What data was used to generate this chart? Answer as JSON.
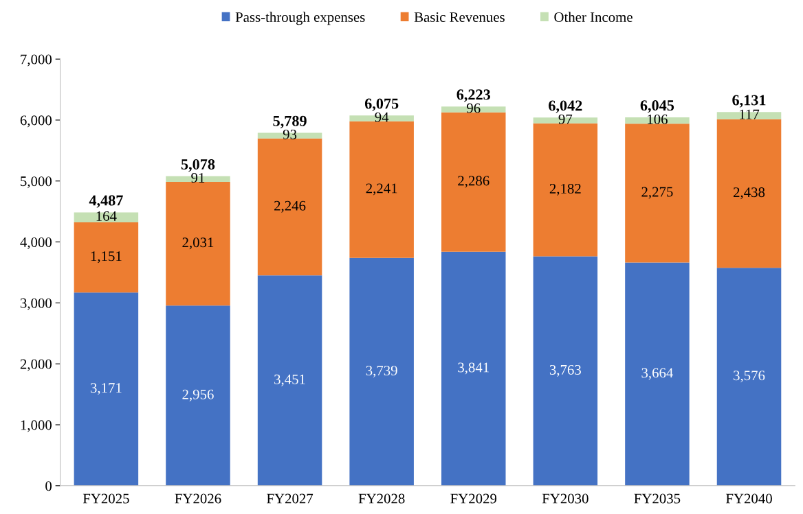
{
  "chart_data": {
    "type": "bar",
    "stacked": true,
    "categories": [
      "FY2025",
      "FY2026",
      "FY2027",
      "FY2028",
      "FY2029",
      "FY2030",
      "FY2035",
      "FY2040"
    ],
    "series": [
      {
        "name": "Pass-through expenses",
        "color": "#4472c4",
        "values": [
          3171,
          2956,
          3451,
          3739,
          3841,
          3763,
          3664,
          3576
        ],
        "value_labels": [
          "3,171",
          "2,956",
          "3,451",
          "3,739",
          "3,841",
          "3,763",
          "3,664",
          "3,576"
        ]
      },
      {
        "name": "Basic Revenues",
        "color": "#ed7d31",
        "values": [
          1151,
          2031,
          2246,
          2241,
          2286,
          2182,
          2275,
          2438
        ],
        "value_labels": [
          "1,151",
          "2,031",
          "2,246",
          "2,241",
          "2,286",
          "2,182",
          "2,275",
          "2,438"
        ]
      },
      {
        "name": "Other Income",
        "color": "#c5e0b4",
        "values": [
          164,
          91,
          93,
          94,
          96,
          97,
          106,
          117
        ],
        "value_labels": [
          "164",
          "91",
          "93",
          "94",
          "96",
          "97",
          "106",
          "117"
        ]
      }
    ],
    "totals": [
      "4,487",
      "5,078",
      "5,789",
      "6,075",
      "6,223",
      "6,042",
      "6,045",
      "6,131"
    ],
    "ylim": [
      0,
      7000
    ],
    "yticks": [
      0,
      {
        "value": 1000,
        "label": "1,000"
      },
      {
        "value": 2000,
        "label": "2,000"
      },
      {
        "value": 3000,
        "label": "3,000"
      },
      {
        "value": 4000,
        "label": "4,000"
      },
      {
        "value": 5000,
        "label": "5,000"
      },
      {
        "value": 6000,
        "label": "6,000"
      },
      {
        "value": 7000,
        "label": "7,000"
      }
    ],
    "grid": false,
    "legend": "top"
  }
}
